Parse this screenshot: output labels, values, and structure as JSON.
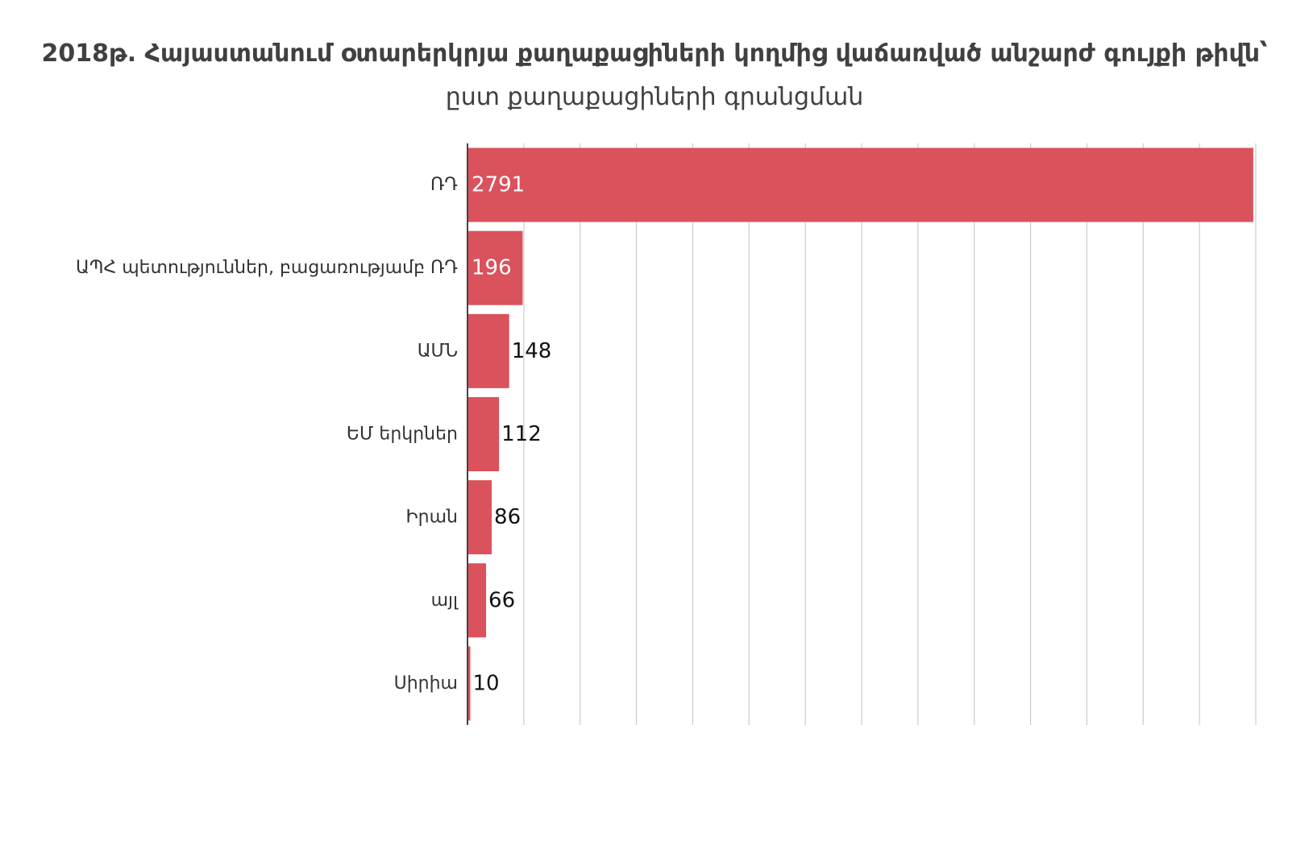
{
  "chart_data": {
    "type": "bar",
    "orientation": "horizontal",
    "title_lines": [
      "2018թ. Հայաստանում օտարերկրյա քաղաքացիների կողմից վաճառված անշարժ գույքի թիվն՝",
      "ըստ քաղաքացիների գրանցման"
    ],
    "xlabel": "",
    "ylabel": "",
    "categories": [
      "ՌԴ",
      "ԱՊՀ պետություններ, բացառությամբ ՌԴ",
      "ԱՄՆ",
      "ԵՄ երկրներ",
      "Իրան",
      "այլ",
      "Սիրիա"
    ],
    "values": [
      2791,
      196,
      148,
      112,
      86,
      66,
      10
    ],
    "xlim": [
      0,
      2800
    ],
    "grid": "vertical",
    "grid_step": 200,
    "data_labels": true,
    "tick_labels_shown": false,
    "legend": "none",
    "colors": {
      "bar": "#da525c",
      "grid": "#cccccc",
      "axis": "#444444",
      "label_inside": "#ffffff",
      "label_outside": "#111111",
      "category_text": "#333333",
      "title": "#404040"
    }
  }
}
